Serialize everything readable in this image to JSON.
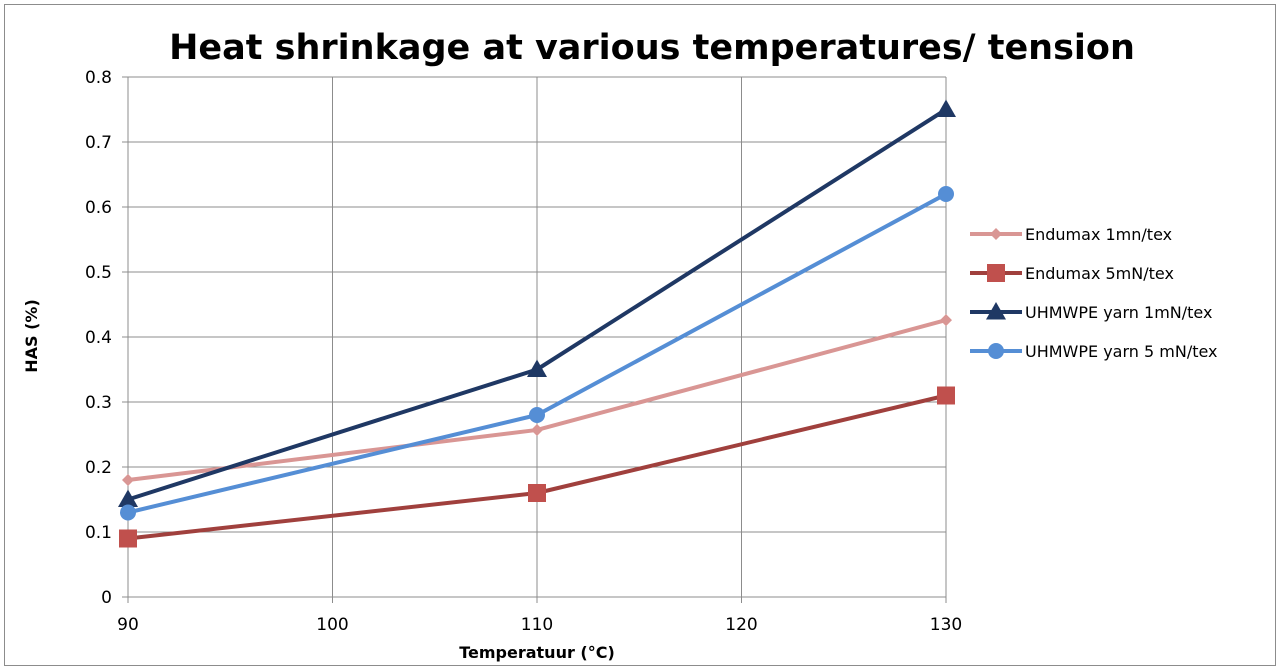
{
  "chart_data": {
    "type": "line",
    "title": "Heat shrinkage at various temperatures/ tension",
    "xlabel": "Temperatuur (°C)",
    "ylabel": "HAS (%)",
    "xlim": [
      90,
      130
    ],
    "ylim": [
      0,
      0.8
    ],
    "x_ticks": [
      90,
      100,
      110,
      120,
      130
    ],
    "y_ticks": [
      0,
      0.1,
      0.2,
      0.3,
      0.4,
      0.5,
      0.6,
      0.7,
      0.8
    ],
    "x_tick_labels": [
      "90",
      "100",
      "110",
      "120",
      "130"
    ],
    "y_tick_labels": [
      "0",
      "0.1",
      "0.2",
      "0.3",
      "0.4",
      "0.5",
      "0.6",
      "0.7",
      "0.8"
    ],
    "grid": true,
    "legend_position": "right",
    "series": [
      {
        "name": "Endumax 1mn/tex",
        "color": "#d99694",
        "marker": "diamond",
        "x": [
          90,
          110,
          130
        ],
        "y": [
          0.18,
          0.257,
          0.426
        ]
      },
      {
        "name": "Endumax 5mN/tex",
        "color": "#c0504d",
        "line_color": "#a0403d",
        "marker": "square",
        "x": [
          90,
          110,
          130
        ],
        "y": [
          0.09,
          0.16,
          0.31
        ]
      },
      {
        "name": "UHMWPE yarn 1mN/tex",
        "color": "#1f3864",
        "marker": "triangle",
        "x": [
          90,
          110,
          130
        ],
        "y": [
          0.15,
          0.35,
          0.75
        ]
      },
      {
        "name": "UHMWPE yarn 5 mN/tex",
        "color": "#558ed5",
        "marker": "circle",
        "x": [
          90,
          110,
          130
        ],
        "y": [
          0.13,
          0.28,
          0.62
        ]
      }
    ]
  }
}
